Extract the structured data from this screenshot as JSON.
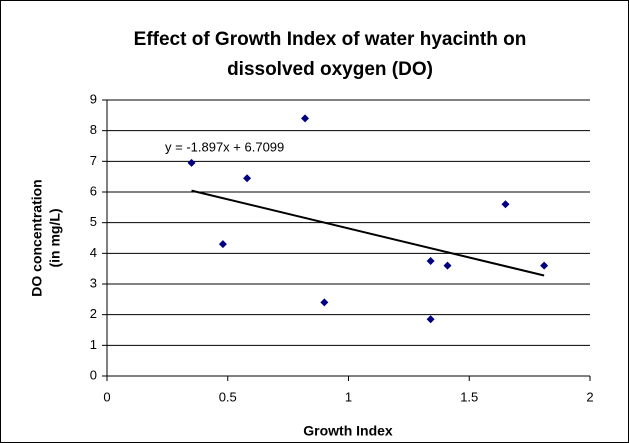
{
  "chart_data": {
    "type": "scatter",
    "title": [
      "Effect of Growth Index of water hyacinth on",
      "dissolved oxygen (DO)"
    ],
    "x_label": "Growth Index",
    "y_label": [
      "DO concentration",
      "(in mg/L)"
    ],
    "x": [
      0.35,
      0.48,
      0.58,
      0.82,
      0.9,
      1.34,
      1.34,
      1.41,
      1.65,
      1.81
    ],
    "values": [
      6.95,
      4.3,
      6.45,
      8.4,
      2.4,
      3.75,
      1.85,
      3.6,
      5.6,
      3.6
    ],
    "color": "#000080",
    "xlim": [
      0,
      2
    ],
    "xticks": [
      0,
      0.5,
      1,
      1.5,
      2
    ],
    "ylim": [
      0,
      9
    ],
    "yticks": [
      0,
      1,
      2,
      3,
      4,
      5,
      6,
      7,
      8,
      9
    ],
    "grid": true,
    "trendline": {
      "equation": "y = -1.897x + 6.7099",
      "slope": -1.897,
      "intercept": 6.7099
    }
  }
}
